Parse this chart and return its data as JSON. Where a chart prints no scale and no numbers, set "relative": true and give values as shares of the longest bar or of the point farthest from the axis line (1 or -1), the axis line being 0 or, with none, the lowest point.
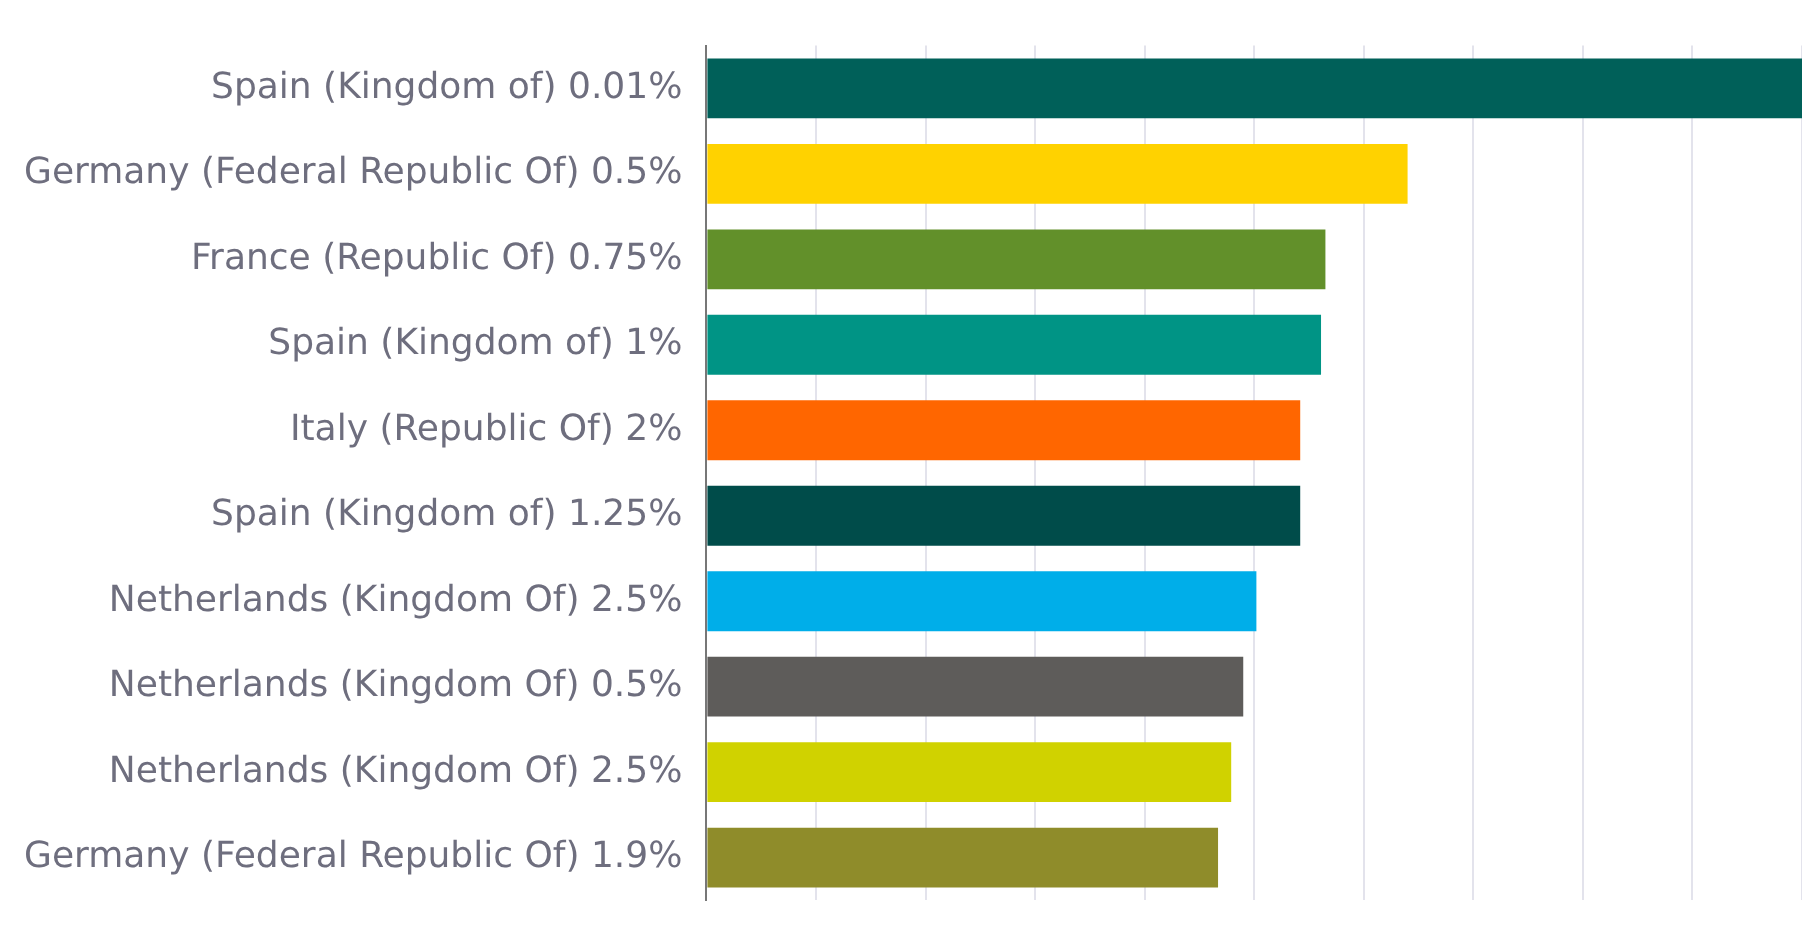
{
  "chart_data": {
    "type": "bar",
    "orientation": "horizontal",
    "relative": true,
    "grid": "x",
    "legend": false,
    "categories": [
      "Spain (Kingdom of) 0.01%",
      "Germany (Federal Republic Of) 0.5%",
      "France (Republic Of) 0.75%",
      "Spain (Kingdom of) 1%",
      "Italy (Republic Of) 2%",
      "Spain (Kingdom of) 1.25%",
      "Netherlands (Kingdom Of) 2.5%",
      "Netherlands (Kingdom Of) 0.5%",
      "Netherlands (Kingdom Of) 2.5%",
      "Germany (Federal Republic Of) 1.9%"
    ],
    "values": [
      1,
      0.64,
      0.565,
      0.561,
      0.542,
      0.542,
      0.502,
      0.49,
      0.479,
      0.467
    ],
    "colors": [
      "#006059",
      "#ffd200",
      "#62902a",
      "#009485",
      "#ff6600",
      "#004c4a",
      "#00aee9",
      "#5e5c5a",
      "#d0d200",
      "#8f8c2a"
    ]
  }
}
